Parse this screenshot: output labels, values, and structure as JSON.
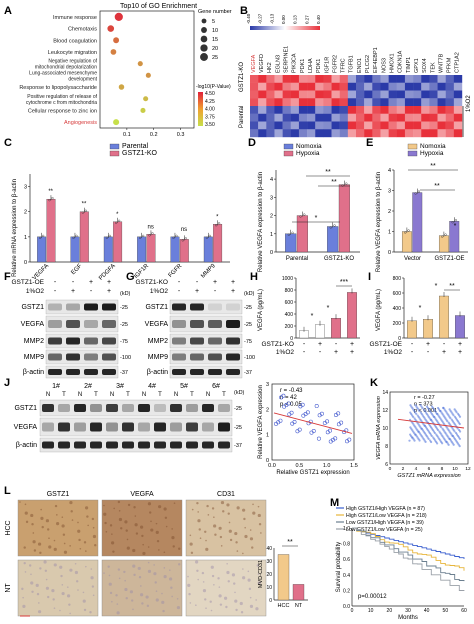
{
  "colors": {
    "blue": "#6a7fdb",
    "pink": "#e0708a",
    "tan": "#f2c98a",
    "purple": "#8a78d0",
    "red": "#d63a3a",
    "heat_hi": "#e8303a",
    "heat_lo": "#2b3aa8"
  },
  "panels": {
    "A": {
      "letter": "A",
      "title": "Top10 of GO Enrichment",
      "terms": [
        "Immune response",
        "Chemotaxis",
        "Blood coagulation",
        "Leukocyte migration",
        "Negative regulation of mitochondrial depolarization",
        "Lung-associated mesenchyme development",
        "Response to lipopolysaccharide",
        "Positive regulation of release of cytochrome c from mitochondria",
        "Cellular response to zinc ion",
        "Angiogenesis"
      ],
      "highlight_index": 9,
      "x_ticks": [
        "0.1",
        "0.2",
        "0.3"
      ],
      "gene_number_title": "Gene number",
      "gene_number_legend": [
        "5",
        "10",
        "15",
        "20",
        "25"
      ],
      "pval_title": "-log10(P-Value)",
      "pval_legend": [
        "4.50",
        "4.25",
        "4.00",
        "3.75",
        "3.50"
      ],
      "points": [
        {
          "x": 0.07,
          "size": 28,
          "pval": 4.4
        },
        {
          "x": 0.04,
          "size": 15,
          "pval": 4.3
        },
        {
          "x": 0.06,
          "size": 10,
          "pval": 4.1
        },
        {
          "x": 0.05,
          "size": 9,
          "pval": 4.0
        },
        {
          "x": 0.15,
          "size": 6,
          "pval": 3.9
        },
        {
          "x": 0.18,
          "size": 6,
          "pval": 3.9
        },
        {
          "x": 0.08,
          "size": 8,
          "pval": 3.8
        },
        {
          "x": 0.17,
          "size": 6,
          "pval": 3.7
        },
        {
          "x": 0.16,
          "size": 6,
          "pval": 3.6
        },
        {
          "x": 0.06,
          "size": 11,
          "pval": 3.5
        }
      ]
    },
    "B": {
      "letter": "B",
      "scale_labels": [
        "-0.40",
        "-0.27",
        "-0.13",
        "0.00",
        "0.13",
        "0.27",
        "0.40"
      ],
      "genes": [
        "VEGFA",
        "VEGFD",
        "HK2",
        "EGLN3",
        "SERPINE1",
        "PIK3CA",
        "PDK1",
        "LDHA",
        "PDK1",
        "IGF1R",
        "FGFR2",
        "TFRC",
        "TGFB1",
        "ENO1",
        "PLCG2",
        "EIF4EBP1",
        "NOS3",
        "HMOX1",
        "CDKN1A",
        "TIMP1",
        "GPX1",
        "SOX4",
        "TEK",
        "WNT7B",
        "PFKM",
        "CTP1A2"
      ],
      "row_labels": [
        "GSTZ1-KO",
        "Parental"
      ],
      "side_label": "1%O2"
    },
    "C": {
      "letter": "C",
      "legend": [
        "Parental",
        "GSTZ1-KO"
      ],
      "ylabel": "Relative mRNA expression to β-actin",
      "categories": [
        "VEGFA",
        "EGF",
        "PDGFA",
        "IGF1R",
        "FGFR",
        "MMP9"
      ],
      "sig": [
        "**",
        "**",
        "*",
        "ns",
        "ns",
        "*"
      ]
    },
    "D": {
      "letter": "D",
      "legend": [
        "Nomoxia",
        "Hypoxia"
      ],
      "ylabel": "Relative VEGFA expression to β-actin",
      "categories": [
        "Parental",
        "GSTZ1-KO"
      ],
      "sig": [
        "*",
        "**",
        "**"
      ]
    },
    "E": {
      "letter": "E",
      "legend": [
        "Nomoxia",
        "Hypoxia"
      ],
      "ylabel": "Relative VEGFA expression to β-actin",
      "categories": [
        "Vector",
        "GSTZ1-OE"
      ],
      "sig": [
        "**",
        "**",
        "*"
      ]
    },
    "F": {
      "letter": "F",
      "rows": [
        {
          "label": "GSTZ1-OE",
          "marks": [
            "-",
            "-",
            "+",
            "+"
          ]
        },
        {
          "label": "1%O2",
          "marks": [
            "-",
            "+",
            "-",
            "+"
          ]
        }
      ],
      "kd": "(kD)",
      "bands": [
        {
          "label": "GSTZ1",
          "kd": "-25"
        },
        {
          "label": "VEGFA",
          "kd": "-25"
        },
        {
          "label": "MMP2",
          "kd": "-75"
        },
        {
          "label": "MMP9",
          "kd": "-100"
        },
        {
          "label": "β-actin",
          "kd": "-37"
        }
      ]
    },
    "G": {
      "letter": "G",
      "rows": [
        {
          "label": "GSTZ1-KO",
          "marks": [
            "-",
            "-",
            "+",
            "+"
          ]
        },
        {
          "label": "1%O2",
          "marks": [
            "-",
            "+",
            "-",
            "+"
          ]
        }
      ],
      "kd": "(kD)",
      "bands": [
        {
          "label": "GSTZ1",
          "kd": "-25"
        },
        {
          "label": "VEGFA",
          "kd": "-25"
        },
        {
          "label": "MMP2",
          "kd": "-75"
        },
        {
          "label": "MMP9",
          "kd": "-100"
        },
        {
          "label": "β-actin",
          "kd": "-37"
        }
      ]
    },
    "H": {
      "letter": "H",
      "ylabel": "VEGFA (pg/mL)",
      "yticks": [
        "0",
        "200",
        "400",
        "600",
        "800",
        "1000"
      ],
      "rows": [
        {
          "label": "GSTZ1-KO",
          "marks": [
            "-",
            "+",
            "-",
            "+"
          ]
        },
        {
          "label": "1%O2",
          "marks": [
            "-",
            "-",
            "+",
            "+"
          ]
        }
      ],
      "sig": [
        "*",
        "*",
        "***"
      ]
    },
    "I": {
      "letter": "I",
      "ylabel": "VEGFA (pg/mL)",
      "yticks": [
        "0",
        "200",
        "400",
        "600",
        "800"
      ],
      "rows": [
        {
          "label": "GSTZ1-OE",
          "marks": [
            "-",
            "+",
            "-",
            "+"
          ]
        },
        {
          "label": "1%O2",
          "marks": [
            "-",
            "-",
            "+",
            "+"
          ]
        }
      ],
      "sig": [
        "*",
        "*",
        "**"
      ]
    },
    "J": {
      "letter": "J",
      "pairs": [
        "1#",
        "2#",
        "3#",
        "4#",
        "5#",
        "6#"
      ],
      "lane_letters": [
        "N",
        "T"
      ],
      "kd": "(kD)",
      "bands": [
        {
          "label": "GSTZ1",
          "kd": "-25"
        },
        {
          "label": "VEGFA",
          "kd": "-25"
        },
        {
          "label": "β-actin",
          "kd": "-37"
        }
      ],
      "stats": [
        "r = -0.43",
        "n = 42",
        "p < 0.05"
      ],
      "xlabel": "Relative GSTZ1 expression",
      "ylabel": "Relative VEGFA expression",
      "xticks": [
        "0.0",
        "0.5",
        "1.0",
        "1.5"
      ],
      "yticks": [
        "0",
        "1",
        "2",
        "3"
      ]
    },
    "K": {
      "letter": "K",
      "stats": [
        "r = -0.27",
        "n = 373",
        "p < 0.001"
      ],
      "xlabel": "GSTZ1 mRNA expression",
      "ylabel": "VEGFA mRNA expression",
      "xticks": [
        "0",
        "2",
        "4",
        "6",
        "8",
        "10",
        "12"
      ],
      "yticks": [
        "6",
        "8",
        "10",
        "12",
        "14"
      ]
    },
    "L": {
      "letter": "L",
      "col_labels": [
        "GSTZ1",
        "VEGFA",
        "CD31"
      ],
      "row_labels": [
        "HCC",
        "NT"
      ],
      "bar_ylabel": "MVD-CD31",
      "bar_yticks": [
        "0",
        "10",
        "20",
        "30",
        "40"
      ],
      "bar_categories": [
        "HCC",
        "NT"
      ],
      "bar_values": [
        35,
        12
      ],
      "bar_sig": "**"
    },
    "M": {
      "letter": "M",
      "legend": [
        "High GSTZ1/High VEGFA (n = 87)",
        "High GSTZ1/Low VEGFA (n = 218)",
        "Low GSTZ1/High VEGFA (n = 39)",
        "Low GSTZ1/Low VEGFA (n = 25)"
      ],
      "legend_colors": [
        "#3a5fcf",
        "#e7b53a",
        "#6b7f8f",
        "#9aa0a8"
      ],
      "ylabel": "Survival probability",
      "xlabel": "Months",
      "xticks": [
        "0",
        "10",
        "20",
        "30",
        "40",
        "50",
        "60"
      ],
      "yticks": [
        "0.0",
        "0.2",
        "0.4",
        "0.6",
        "0.8",
        "1.0"
      ],
      "pvalue": "p=0.00012"
    }
  },
  "chart_data": [
    {
      "type": "bar",
      "title": "",
      "ylabel": "Relative mRNA expression to β-actin",
      "categories": [
        "VEGFA",
        "EGF",
        "PDGFA",
        "IGF1R",
        "FGFR",
        "MMP9"
      ],
      "series": [
        {
          "name": "Parental",
          "values": [
            1,
            1,
            1,
            1,
            1,
            1
          ]
        },
        {
          "name": "GSTZ1-KO",
          "values": [
            2.5,
            2.0,
            1.6,
            1.1,
            0.9,
            1.5
          ]
        }
      ],
      "ylim": [
        0,
        3.5
      ],
      "yticks": [
        "0",
        "1",
        "2",
        "3"
      ]
    },
    {
      "type": "bar",
      "ylabel": "Relative VEGFA expression to β-actin",
      "categories": [
        "Parental",
        "GSTZ1-KO"
      ],
      "series": [
        {
          "name": "Nomoxia",
          "values": [
            1.0,
            1.4
          ]
        },
        {
          "name": "Hypoxia",
          "values": [
            2.0,
            3.7
          ]
        }
      ],
      "ylim": [
        0,
        4.5
      ],
      "yticks": [
        "0",
        "1",
        "2",
        "3",
        "4"
      ]
    },
    {
      "type": "bar",
      "ylabel": "Relative VEGFA expression to β-actin",
      "categories": [
        "Vector",
        "GSTZ1-OE"
      ],
      "series": [
        {
          "name": "Nomoxia",
          "values": [
            1.0,
            0.8
          ]
        },
        {
          "name": "Hypoxia",
          "values": [
            2.9,
            1.5
          ]
        }
      ],
      "ylim": [
        0,
        4
      ],
      "yticks": [
        "0",
        "1",
        "2",
        "3",
        "4"
      ]
    },
    {
      "type": "bar",
      "ylabel": "VEGFA (pg/mL)",
      "values": [
        120,
        220,
        330,
        760
      ],
      "ylim": [
        0,
        1000
      ]
    },
    {
      "type": "bar",
      "ylabel": "VEGFA (pg/mL)",
      "values": [
        230,
        250,
        560,
        300
      ],
      "ylim": [
        0,
        800
      ]
    },
    {
      "type": "bar",
      "ylabel": "MVD-CD31",
      "categories": [
        "HCC",
        "NT"
      ],
      "values": [
        35,
        12
      ],
      "ylim": [
        0,
        40
      ]
    }
  ]
}
